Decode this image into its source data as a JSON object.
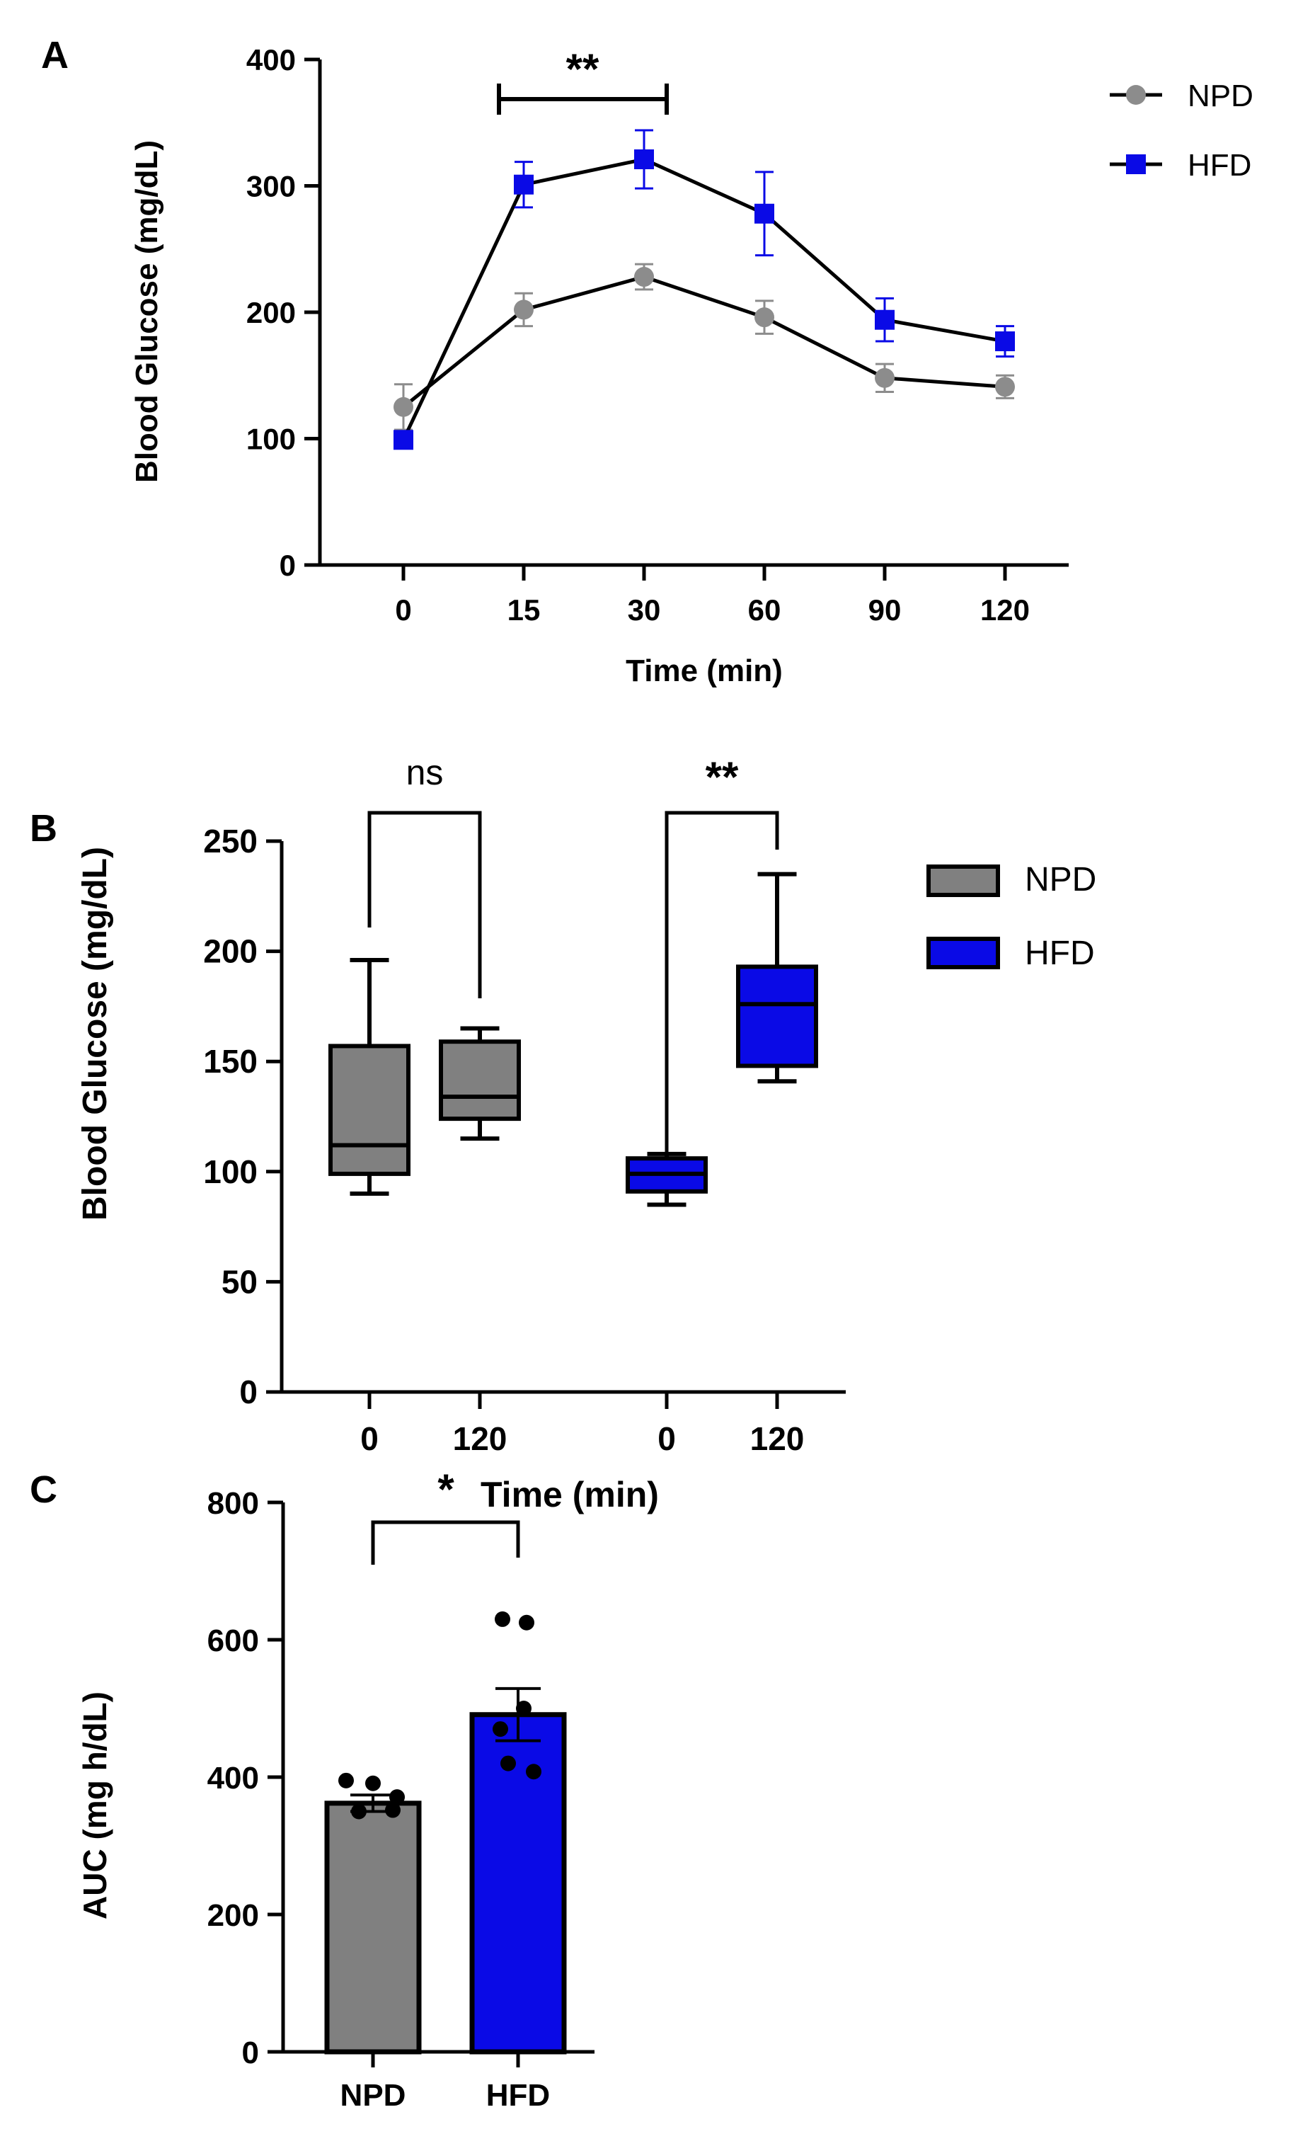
{
  "colors": {
    "npd_line": "#8c8c8c",
    "npd_box": "#808080",
    "hfd": "#0a0ae6",
    "axis": "#000000"
  },
  "chart_data": [
    {
      "panel": "A",
      "type": "line",
      "title": "",
      "xlabel": "Time (min)",
      "ylabel": "Blood Glucose (mg/dL)",
      "categories": [
        "0",
        "15",
        "30",
        "60",
        "90",
        "120"
      ],
      "ylim": [
        0,
        400
      ],
      "yticks": [
        "0",
        "100",
        "200",
        "300",
        "400"
      ],
      "series": [
        {
          "name": "NPD",
          "marker": "circle",
          "values": [
            125,
            202,
            228,
            196,
            148,
            141
          ],
          "errors": [
            18,
            13,
            10,
            13,
            11,
            9
          ]
        },
        {
          "name": "HFD",
          "marker": "square",
          "values": [
            99,
            301,
            321,
            278,
            194,
            177
          ],
          "errors": [
            4,
            18,
            23,
            33,
            17,
            12
          ]
        }
      ],
      "annotations": [
        {
          "text": "**",
          "from": "15",
          "to": "30"
        }
      ],
      "legend": "top-right"
    },
    {
      "panel": "B",
      "type": "box",
      "title": "",
      "xlabel": "Time (min)",
      "ylabel": "Blood Glucose (mg/dL)",
      "ylim": [
        0,
        250
      ],
      "yticks": [
        "0",
        "50",
        "100",
        "150",
        "200",
        "250"
      ],
      "groups": [
        {
          "name": "NPD",
          "time": "0",
          "min": 90,
          "q1": 99,
          "median": 112,
          "q3": 157,
          "max": 196
        },
        {
          "name": "NPD",
          "time": "120",
          "min": 115,
          "q1": 124,
          "median": 134,
          "q3": 159,
          "max": 165
        },
        {
          "name": "HFD",
          "time": "0",
          "min": 85,
          "q1": 91,
          "median": 99,
          "q3": 106,
          "max": 108
        },
        {
          "name": "HFD",
          "time": "120",
          "min": 141,
          "q1": 148,
          "median": 176,
          "q3": 193,
          "max": 235
        }
      ],
      "annotations": [
        {
          "text": "ns",
          "between": [
            "NPD 0",
            "NPD 120"
          ]
        },
        {
          "text": "**",
          "between": [
            "HFD 0",
            "HFD 120"
          ]
        }
      ],
      "legend": "top-right"
    },
    {
      "panel": "C",
      "type": "bar",
      "title": "",
      "xlabel": "",
      "ylabel": "AUC  (mg h/dL)",
      "categories": [
        "NPD",
        "HFD"
      ],
      "values": [
        362,
        491
      ],
      "errors": [
        12,
        38
      ],
      "points": [
        [
          395,
          391,
          371,
          350,
          352
        ],
        [
          630,
          625,
          500,
          470,
          420,
          408
        ]
      ],
      "ylim": [
        0,
        800
      ],
      "yticks": [
        "0",
        "200",
        "400",
        "600",
        "800"
      ],
      "annotations": [
        {
          "text": "*",
          "between": [
            "NPD",
            "HFD"
          ]
        }
      ]
    }
  ]
}
